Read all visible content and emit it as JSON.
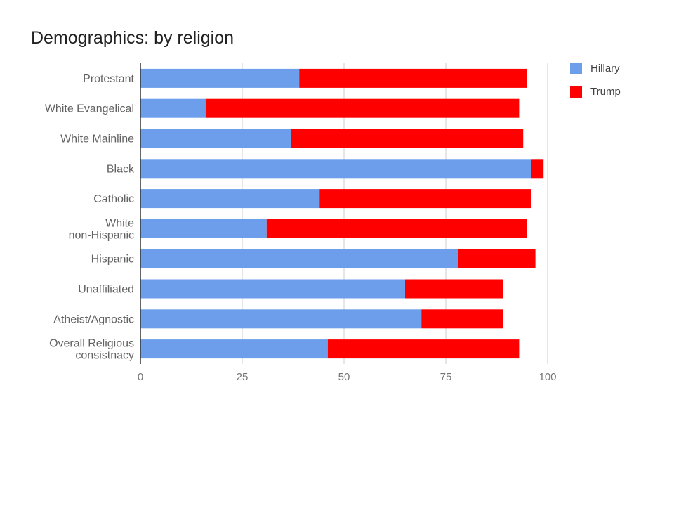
{
  "chart_data": {
    "type": "bar",
    "orientation": "horizontal",
    "stacked": true,
    "title": "Demographics: by religion",
    "xlabel": "",
    "ylabel": "",
    "categories": [
      [
        "Protestant"
      ],
      [
        "White Evangelical"
      ],
      [
        "White Mainline"
      ],
      [
        "Black"
      ],
      [
        "Catholic"
      ],
      [
        "White",
        "non-Hispanic"
      ],
      [
        "Hispanic"
      ],
      [
        "Unaffiliated"
      ],
      [
        "Atheist/Agnostic"
      ],
      [
        "Overall Religious",
        "consistnacy"
      ]
    ],
    "series": [
      {
        "name": "Hillary",
        "color": "#6d9eeb",
        "values": [
          39,
          16,
          37,
          96,
          44,
          31,
          78,
          65,
          69,
          46
        ]
      },
      {
        "name": "Trump",
        "color": "#ff0000",
        "values": [
          56,
          77,
          57,
          3,
          52,
          64,
          19,
          24,
          20,
          47
        ]
      }
    ],
    "xlim": [
      0,
      100
    ],
    "xticks": [
      0,
      25,
      50,
      75,
      100
    ],
    "grid": true,
    "legend_position": "right"
  }
}
